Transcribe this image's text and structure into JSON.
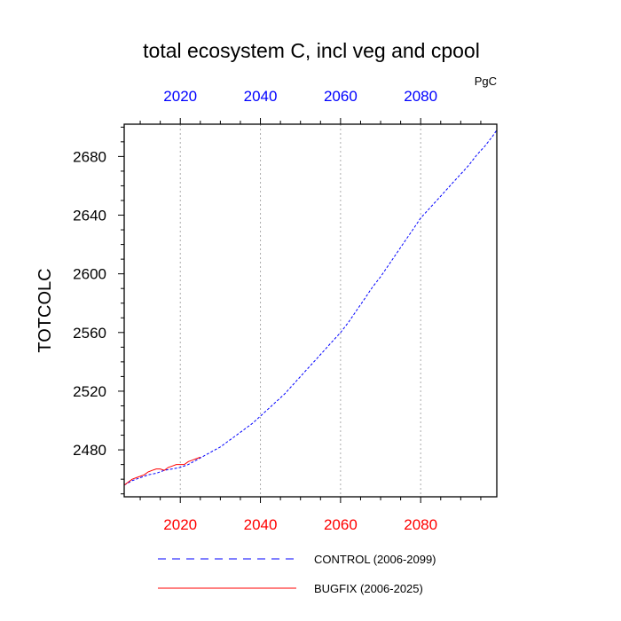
{
  "chart_data": {
    "type": "line",
    "title": "total ecosystem C, incl veg and cpool",
    "units": "PgC",
    "ylabel": "TOTCOLC",
    "xlabel": "",
    "xlim": [
      2006,
      2099
    ],
    "ylim": [
      2448,
      2702
    ],
    "xticks": [
      2020,
      2040,
      2060,
      2080
    ],
    "yticks": [
      2480,
      2520,
      2560,
      2600,
      2640,
      2680
    ],
    "grid_x": true,
    "top_tick_color": "#0000ff",
    "bottom_tick_color": "#ff0000",
    "series": [
      {
        "name": "CONTROL (2006-2099)",
        "color": "#0000ff",
        "dash": "dashed",
        "x": [
          2006,
          2008,
          2010,
          2012,
          2014,
          2016,
          2018,
          2020,
          2022,
          2024,
          2026,
          2028,
          2030,
          2032,
          2034,
          2036,
          2038,
          2040,
          2042,
          2044,
          2046,
          2048,
          2050,
          2052,
          2054,
          2056,
          2058,
          2060,
          2062,
          2064,
          2066,
          2068,
          2070,
          2072,
          2074,
          2076,
          2078,
          2080,
          2082,
          2084,
          2086,
          2088,
          2090,
          2092,
          2094,
          2096,
          2098,
          2099
        ],
        "values": [
          2456,
          2459,
          2461,
          2463,
          2464,
          2466,
          2467,
          2468,
          2470,
          2473,
          2476,
          2479,
          2482,
          2486,
          2490,
          2494,
          2498,
          2503,
          2508,
          2513,
          2518,
          2524,
          2530,
          2536,
          2542,
          2548,
          2554,
          2560,
          2567,
          2575,
          2583,
          2591,
          2598,
          2606,
          2614,
          2622,
          2630,
          2638,
          2644,
          2650,
          2656,
          2662,
          2668,
          2674,
          2681,
          2687,
          2694,
          2698
        ]
      },
      {
        "name": "BUGFIX (2006-2025)",
        "color": "#ff0000",
        "dash": "solid",
        "x": [
          2006,
          2007,
          2008,
          2009,
          2010,
          2011,
          2012,
          2013,
          2014,
          2015,
          2016,
          2017,
          2018,
          2019,
          2020,
          2021,
          2022,
          2023,
          2024,
          2025
        ],
        "values": [
          2456,
          2458,
          2460,
          2461,
          2462,
          2463,
          2465,
          2466,
          2467,
          2467,
          2466,
          2468,
          2469,
          2470,
          2470,
          2470,
          2472,
          2473,
          2474,
          2475
        ]
      }
    ]
  }
}
